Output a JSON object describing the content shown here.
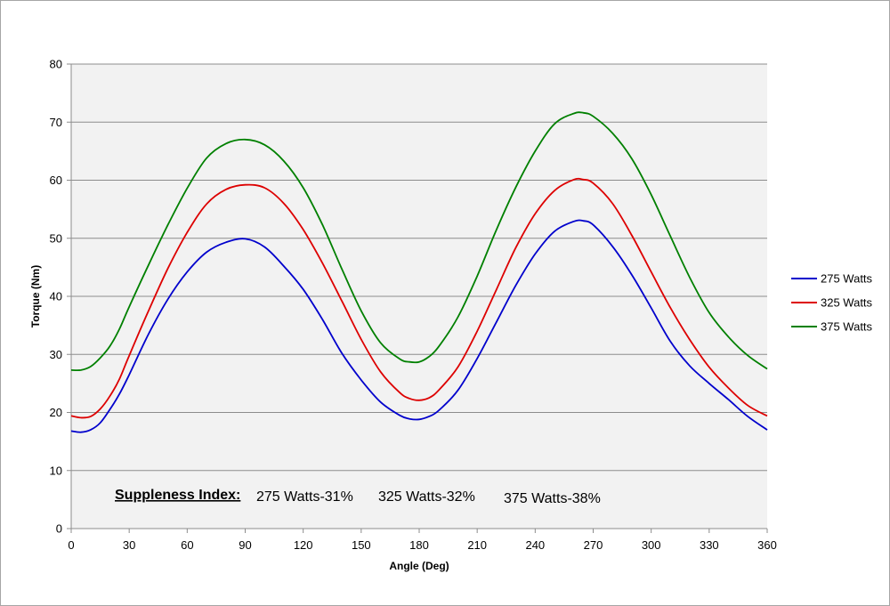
{
  "chart_data": {
    "type": "line",
    "title": "",
    "xlabel": "Angle (Deg)",
    "ylabel": "Torque (Nm)",
    "xlim": [
      0,
      360
    ],
    "ylim": [
      0,
      80
    ],
    "x_ticks": [
      0,
      30,
      60,
      90,
      120,
      150,
      180,
      210,
      240,
      270,
      300,
      330,
      360
    ],
    "y_ticks": [
      0,
      10,
      20,
      30,
      40,
      50,
      60,
      70,
      80
    ],
    "grid": "horizontal",
    "legend_position": "right",
    "x": [
      0,
      5,
      10,
      15,
      20,
      25,
      30,
      40,
      50,
      60,
      70,
      80,
      90,
      100,
      110,
      120,
      130,
      140,
      150,
      160,
      170,
      175,
      180,
      185,
      190,
      200,
      210,
      220,
      230,
      240,
      250,
      260,
      265,
      270,
      280,
      290,
      300,
      310,
      320,
      330,
      340,
      350,
      360
    ],
    "series": [
      {
        "name": "275 Watts",
        "color": "#0000cc",
        "values": [
          16.8,
          16.6,
          17.0,
          18.2,
          20.5,
          23.2,
          26.5,
          33.5,
          39.5,
          44.2,
          47.6,
          49.3,
          49.9,
          48.5,
          45.2,
          41.2,
          36.0,
          30.2,
          25.6,
          21.8,
          19.5,
          18.9,
          18.8,
          19.3,
          20.3,
          23.8,
          29.3,
          35.6,
          41.9,
          47.3,
          51.2,
          52.9,
          53.0,
          52.3,
          48.6,
          43.7,
          38.0,
          32.2,
          28.0,
          25.0,
          22.2,
          19.3,
          17.0
        ]
      },
      {
        "name": "325 Watts",
        "color": "#dd0000",
        "values": [
          19.4,
          19.1,
          19.3,
          20.6,
          22.8,
          25.8,
          29.8,
          37.5,
          44.8,
          51.0,
          55.9,
          58.4,
          59.2,
          58.7,
          56.0,
          51.5,
          45.7,
          39.2,
          32.6,
          27.0,
          23.4,
          22.4,
          22.1,
          22.5,
          23.8,
          27.8,
          34.0,
          41.2,
          48.4,
          54.2,
          58.2,
          60.1,
          60.1,
          59.5,
          56.0,
          50.5,
          44.2,
          38.0,
          32.5,
          27.8,
          24.2,
          21.2,
          19.4
        ]
      },
      {
        "name": "375 Watts",
        "color": "#008000",
        "values": [
          27.3,
          27.3,
          27.9,
          29.4,
          31.4,
          34.4,
          38.2,
          45.4,
          52.3,
          58.6,
          63.8,
          66.3,
          67.0,
          66.1,
          63.3,
          58.7,
          52.3,
          44.7,
          37.5,
          32.0,
          29.2,
          28.7,
          28.7,
          29.6,
          31.3,
          36.4,
          43.5,
          51.5,
          58.8,
          65.0,
          69.7,
          71.5,
          71.6,
          71.0,
          68.1,
          63.7,
          57.5,
          50.3,
          43.2,
          37.2,
          33.0,
          29.8,
          27.5
        ]
      }
    ]
  },
  "annotation": {
    "label": "Suppleness Index:",
    "items": [
      "275 Watts-31%",
      "325 Watts-32%",
      "375 Watts-38%"
    ]
  }
}
